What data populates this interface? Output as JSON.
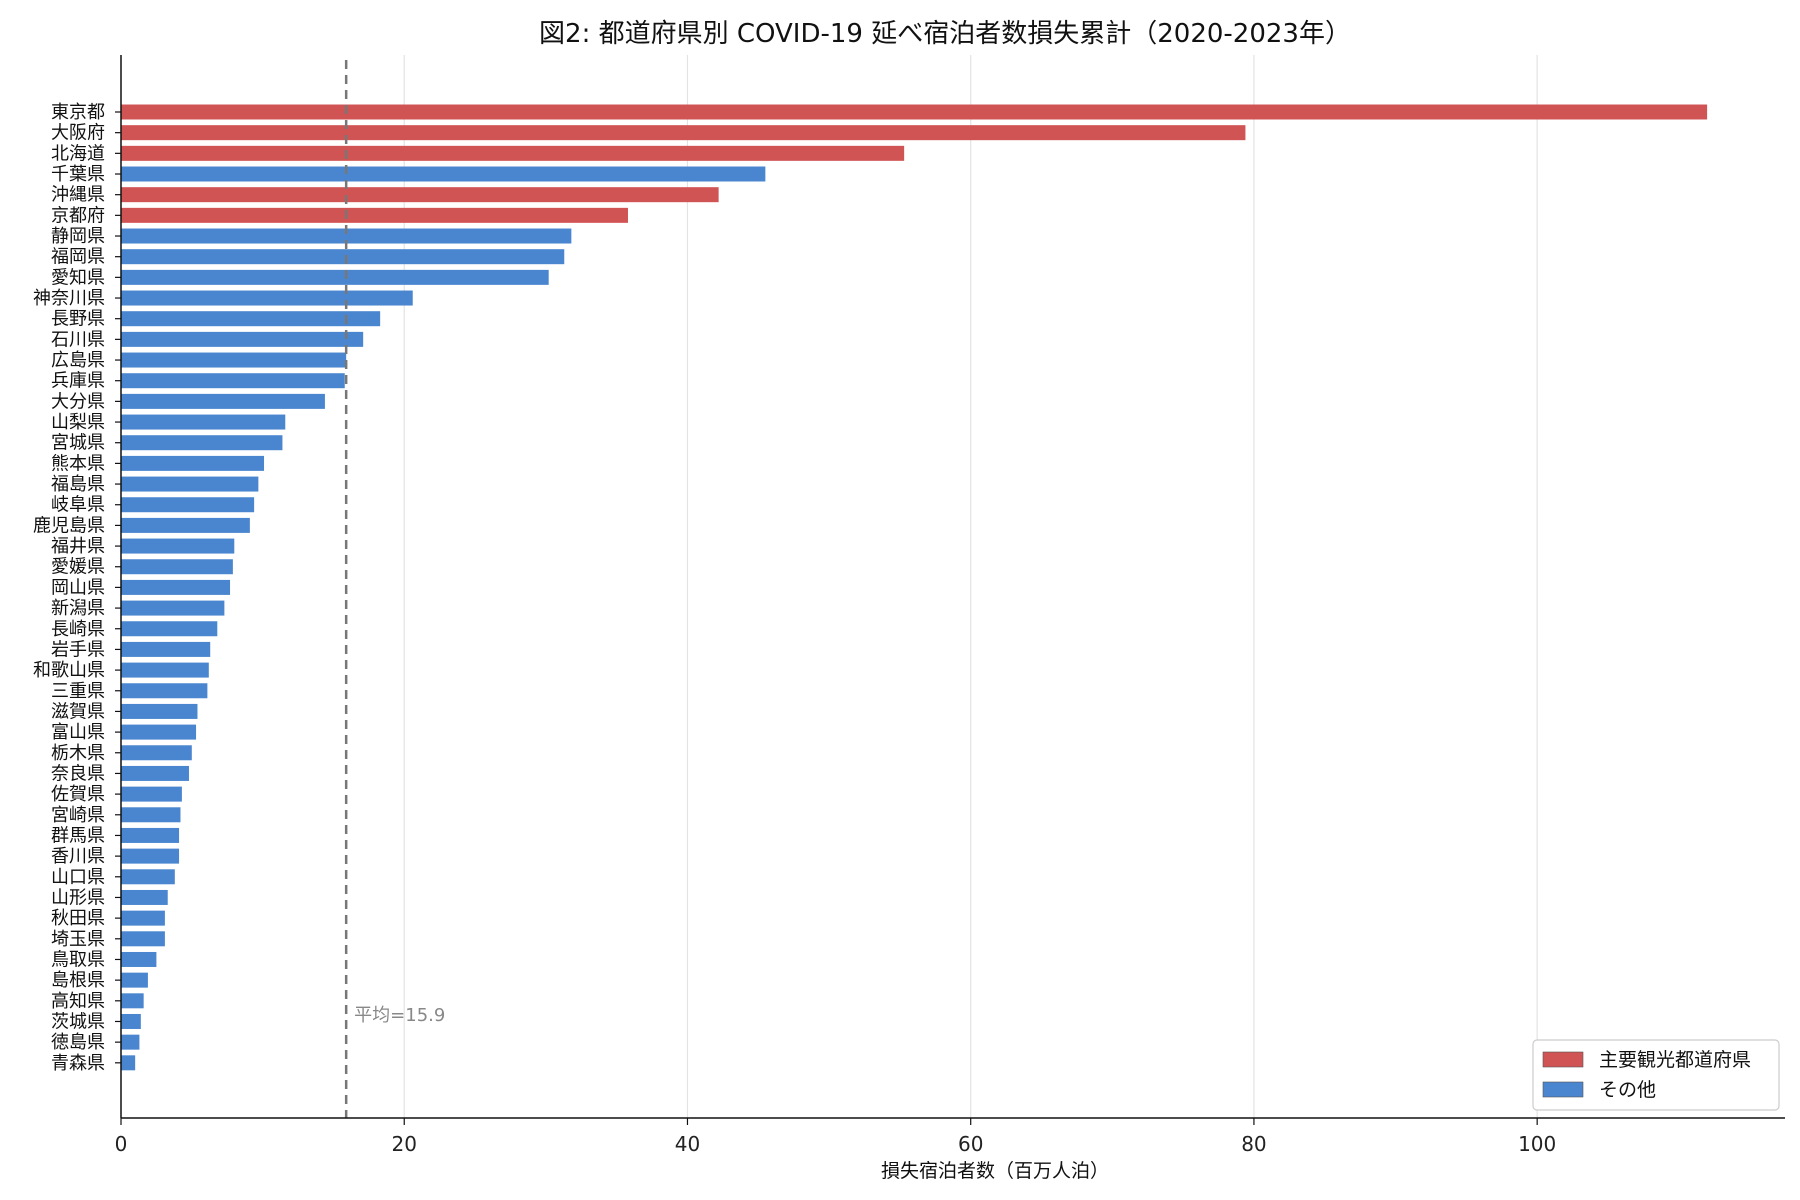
{
  "chart_data": {
    "type": "bar",
    "orientation": "horizontal",
    "title": "図2: 都道府県別 COVID-19 延べ宿泊者数損失累計（2020-2023年）",
    "xlabel": "損失宿泊者数（百万人泊）",
    "ylabel": "",
    "xlim": [
      0,
      117.5
    ],
    "xticks": [
      0,
      20,
      40,
      60,
      80,
      100
    ],
    "grid": "vertical",
    "legend_position": "bottom-right",
    "mean": {
      "value": 15.9,
      "label": "平均=15.9"
    },
    "colors": {
      "major": "#d15454",
      "other": "#4a86cf",
      "mean_line": "#777777"
    },
    "legend": [
      {
        "key": "major",
        "label": "主要観光都道府県"
      },
      {
        "key": "other",
        "label": "その他"
      }
    ],
    "categories": [
      "東京都",
      "大阪府",
      "北海道",
      "千葉県",
      "沖縄県",
      "京都府",
      "静岡県",
      "福岡県",
      "愛知県",
      "神奈川県",
      "長野県",
      "石川県",
      "広島県",
      "兵庫県",
      "大分県",
      "山梨県",
      "宮城県",
      "熊本県",
      "福島県",
      "岐阜県",
      "鹿児島県",
      "福井県",
      "愛媛県",
      "岡山県",
      "新潟県",
      "長崎県",
      "岩手県",
      "和歌山県",
      "三重県",
      "滋賀県",
      "富山県",
      "栃木県",
      "奈良県",
      "佐賀県",
      "宮崎県",
      "群馬県",
      "香川県",
      "山口県",
      "山形県",
      "秋田県",
      "埼玉県",
      "鳥取県",
      "島根県",
      "高知県",
      "茨城県",
      "徳島県",
      "青森県"
    ],
    "values": [
      112.0,
      79.4,
      55.3,
      45.5,
      42.2,
      35.8,
      31.8,
      31.3,
      30.2,
      20.6,
      18.3,
      17.1,
      15.9,
      15.8,
      14.4,
      11.6,
      11.4,
      10.1,
      9.7,
      9.4,
      9.1,
      8.0,
      7.9,
      7.7,
      7.3,
      6.8,
      6.3,
      6.2,
      6.1,
      5.4,
      5.3,
      5.0,
      4.8,
      4.3,
      4.2,
      4.1,
      4.1,
      3.8,
      3.3,
      3.1,
      3.1,
      2.5,
      1.9,
      1.6,
      1.4,
      1.3,
      1.0
    ],
    "groups": [
      "major",
      "major",
      "major",
      "other",
      "major",
      "major",
      "other",
      "other",
      "other",
      "other",
      "other",
      "other",
      "other",
      "other",
      "other",
      "other",
      "other",
      "other",
      "other",
      "other",
      "other",
      "other",
      "other",
      "other",
      "other",
      "other",
      "other",
      "other",
      "other",
      "other",
      "other",
      "other",
      "other",
      "other",
      "other",
      "other",
      "other",
      "other",
      "other",
      "other",
      "other",
      "other",
      "other",
      "other",
      "other",
      "other",
      "other"
    ]
  }
}
